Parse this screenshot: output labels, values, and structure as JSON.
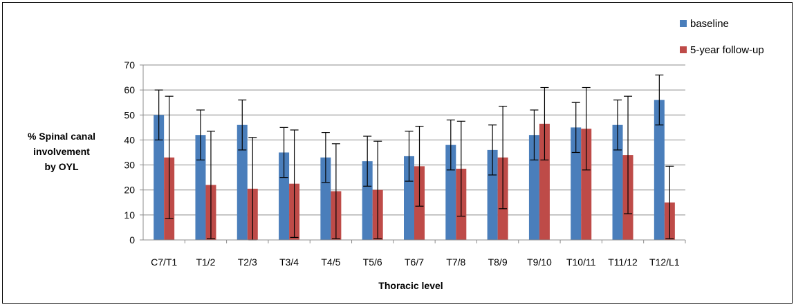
{
  "chart_data": {
    "type": "bar",
    "xlabel": "Thoracic level",
    "ylabel": "% Spinal canal involvement by OYL",
    "ylabel_lines": [
      "% Spinal canal",
      "involvement",
      "by OYL"
    ],
    "ylim": [
      0,
      70
    ],
    "yticks": [
      0,
      10,
      20,
      30,
      40,
      50,
      60,
      70
    ],
    "grid": true,
    "legend_position": "top-right",
    "categories": [
      "C7/T1",
      "T1/2",
      "T2/3",
      "T3/4",
      "T4/5",
      "T5/6",
      "T6/7",
      "T7/8",
      "T8/9",
      "T9/10",
      "T10/11",
      "T11/12",
      "T12/L1"
    ],
    "series": [
      {
        "name": "baseline",
        "color": "#4A7EBB",
        "values": [
          50,
          42,
          46,
          35,
          33,
          31.5,
          33.5,
          38,
          36,
          42,
          45,
          46,
          56
        ],
        "error": [
          10,
          10,
          10,
          10,
          10,
          10,
          10,
          10,
          10,
          10,
          10,
          10,
          10
        ]
      },
      {
        "name": "5-year follow-up",
        "color": "#BE4B48",
        "values": [
          33,
          22,
          20.5,
          22.5,
          19.5,
          20,
          29.5,
          28.5,
          33,
          46.5,
          44.5,
          34,
          15
        ],
        "error": [
          24.5,
          21.5,
          20.5,
          21.5,
          19,
          19.5,
          16,
          19,
          20.5,
          14.5,
          16.5,
          23.5,
          14.5
        ]
      }
    ]
  }
}
